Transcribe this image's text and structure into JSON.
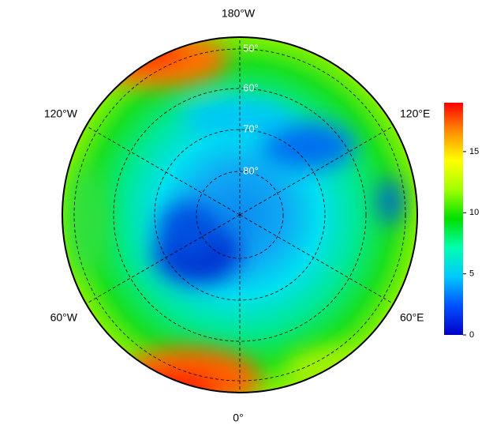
{
  "map": {
    "longitude_labels": [
      "180°W",
      "120°E",
      "60°E",
      "0°",
      "60°W",
      "120°W"
    ],
    "latitude_labels": [
      "50°",
      "60°",
      "70°",
      "80°"
    ],
    "colorbar": {
      "range": [
        0,
        19
      ],
      "ticks": [
        0,
        5,
        10,
        15
      ],
      "colors": [
        "#0000c8",
        "#0050ff",
        "#00c8ff",
        "#00ffb0",
        "#00e000",
        "#a0ff00",
        "#ffff00",
        "#ff9000",
        "#ff0000"
      ]
    }
  }
}
